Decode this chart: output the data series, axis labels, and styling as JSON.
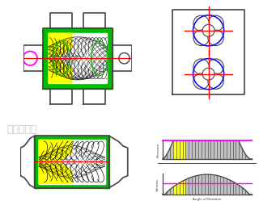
{
  "bg_color": "#ffffff",
  "green": "#00bb00",
  "yellow": "#ffff00",
  "magenta": "#ff00ff",
  "red": "#ff0000",
  "blue": "#0000ff",
  "dark_gray": "#444444",
  "black": "#000000",
  "pressure_label": "Pressure",
  "volume_label": "Volume",
  "angle_label": "Angle of Rotation",
  "watermark": "泡机械美学"
}
